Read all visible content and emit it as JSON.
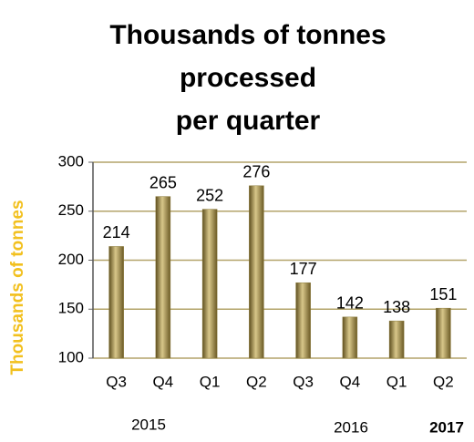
{
  "chart_data": {
    "type": "bar",
    "title": [
      "Thousands of tonnes",
      "processed",
      "per quarter"
    ],
    "y_label": "Thousands of tonnes",
    "categories": [
      "Q3",
      "Q4",
      "Q1",
      "Q2",
      "Q3",
      "Q4",
      "Q1",
      "Q2"
    ],
    "values": [
      214,
      265,
      252,
      276,
      177,
      142,
      138,
      151
    ],
    "groups": [
      "2015",
      "2016",
      "2017"
    ],
    "color": "#8b7a3a",
    "y_label_color": "#f2c01e",
    "ylim": [
      100,
      300
    ],
    "yticks": [
      100,
      150,
      200,
      250,
      300
    ],
    "grid": true
  }
}
